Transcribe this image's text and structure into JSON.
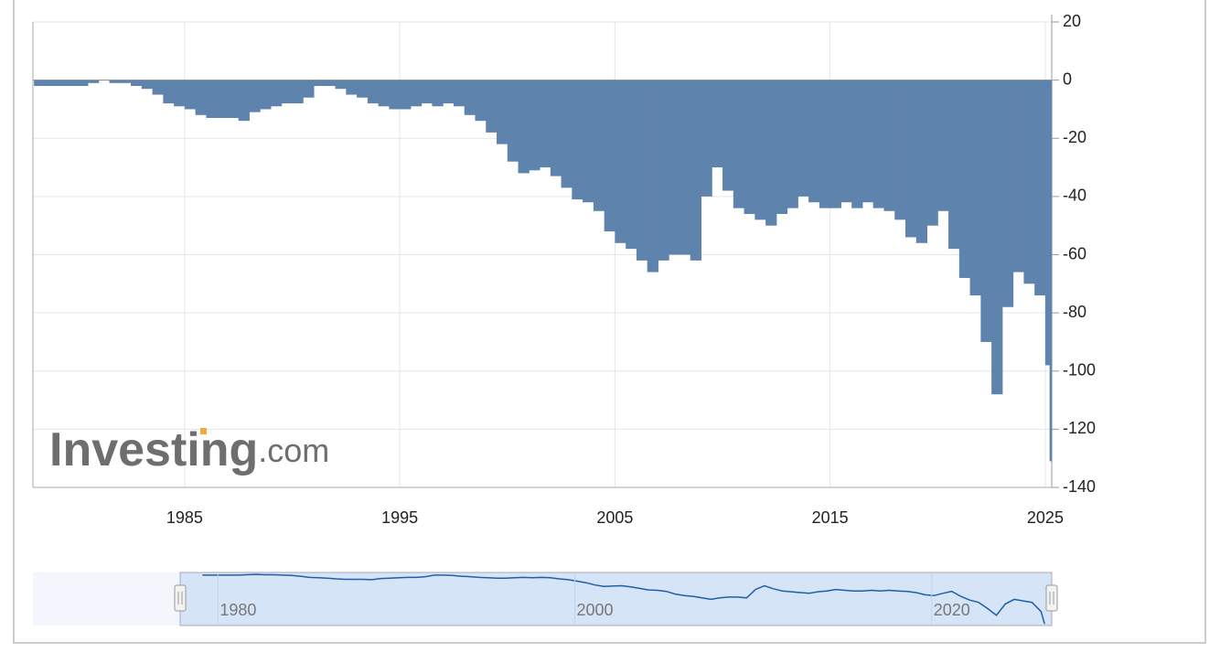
{
  "chart_data": {
    "type": "bar",
    "watermark": "Investing",
    "watermark_suffix": ".com",
    "color": "#5e83ad",
    "x": [
      1978.0,
      1978.5,
      1979.0,
      1979.5,
      1980.0,
      1980.5,
      1981.0,
      1981.5,
      1982.0,
      1982.5,
      1983.0,
      1983.5,
      1984.0,
      1984.5,
      1985.0,
      1985.5,
      1986.0,
      1986.5,
      1987.0,
      1987.5,
      1988.0,
      1988.5,
      1989.0,
      1989.5,
      1990.0,
      1990.5,
      1991.0,
      1991.5,
      1992.0,
      1992.5,
      1993.0,
      1993.5,
      1994.0,
      1994.5,
      1995.0,
      1995.5,
      1996.0,
      1996.5,
      1997.0,
      1997.5,
      1998.0,
      1998.5,
      1999.0,
      1999.5,
      2000.0,
      2000.5,
      2001.0,
      2001.5,
      2002.0,
      2002.5,
      2003.0,
      2003.5,
      2004.0,
      2004.5,
      2005.0,
      2005.5,
      2006.0,
      2006.5,
      2007.0,
      2007.5,
      2008.0,
      2008.5,
      2009.0,
      2009.5,
      2010.0,
      2010.5,
      2011.0,
      2011.5,
      2012.0,
      2012.5,
      2013.0,
      2013.5,
      2014.0,
      2014.5,
      2015.0,
      2015.5,
      2016.0,
      2016.5,
      2017.0,
      2017.5,
      2018.0,
      2018.5,
      2019.0,
      2019.5,
      2020.0,
      2020.5,
      2021.0,
      2021.5,
      2022.0,
      2022.5,
      2023.0,
      2023.5,
      2024.0,
      2024.5,
      2025.0,
      2025.2
    ],
    "values": [
      -2,
      -2,
      -2,
      -2,
      -2,
      -1,
      0,
      -1,
      -1,
      -2,
      -3,
      -5,
      -8,
      -9,
      -10,
      -12,
      -13,
      -13,
      -13,
      -14,
      -11,
      -10,
      -9,
      -8,
      -8,
      -6,
      -2,
      -2,
      -3,
      -5,
      -6,
      -8,
      -9,
      -10,
      -10,
      -9,
      -8,
      -9,
      -8,
      -9,
      -12,
      -14,
      -18,
      -22,
      -28,
      -32,
      -31,
      -30,
      -33,
      -37,
      -41,
      -42,
      -45,
      -52,
      -56,
      -58,
      -62,
      -66,
      -62,
      -60,
      -60,
      -62,
      -40,
      -30,
      -38,
      -44,
      -46,
      -48,
      -50,
      -46,
      -44,
      -40,
      -42,
      -44,
      -44,
      -42,
      -44,
      -42,
      -44,
      -45,
      -48,
      -54,
      -56,
      -50,
      -45,
      -58,
      -68,
      -74,
      -90,
      -108,
      -78,
      -66,
      -70,
      -74,
      -98,
      -131
    ],
    "xlim": [
      1977.95,
      2025.3
    ],
    "xticks": [
      1985,
      1995,
      2005,
      2015,
      2025
    ],
    "ylim": [
      -140,
      20
    ],
    "yticks": [
      20,
      0,
      -20,
      -40,
      -60,
      -80,
      -100,
      -120,
      -140
    ],
    "grid": true,
    "navigator": {
      "xlim": [
        1968.5,
        2025.6
      ],
      "ylim": [
        -135,
        5
      ],
      "xticks": [
        1980,
        2000,
        2020
      ],
      "line_color": "#1f5fa8",
      "fill_color": "#d6e4f7"
    }
  }
}
